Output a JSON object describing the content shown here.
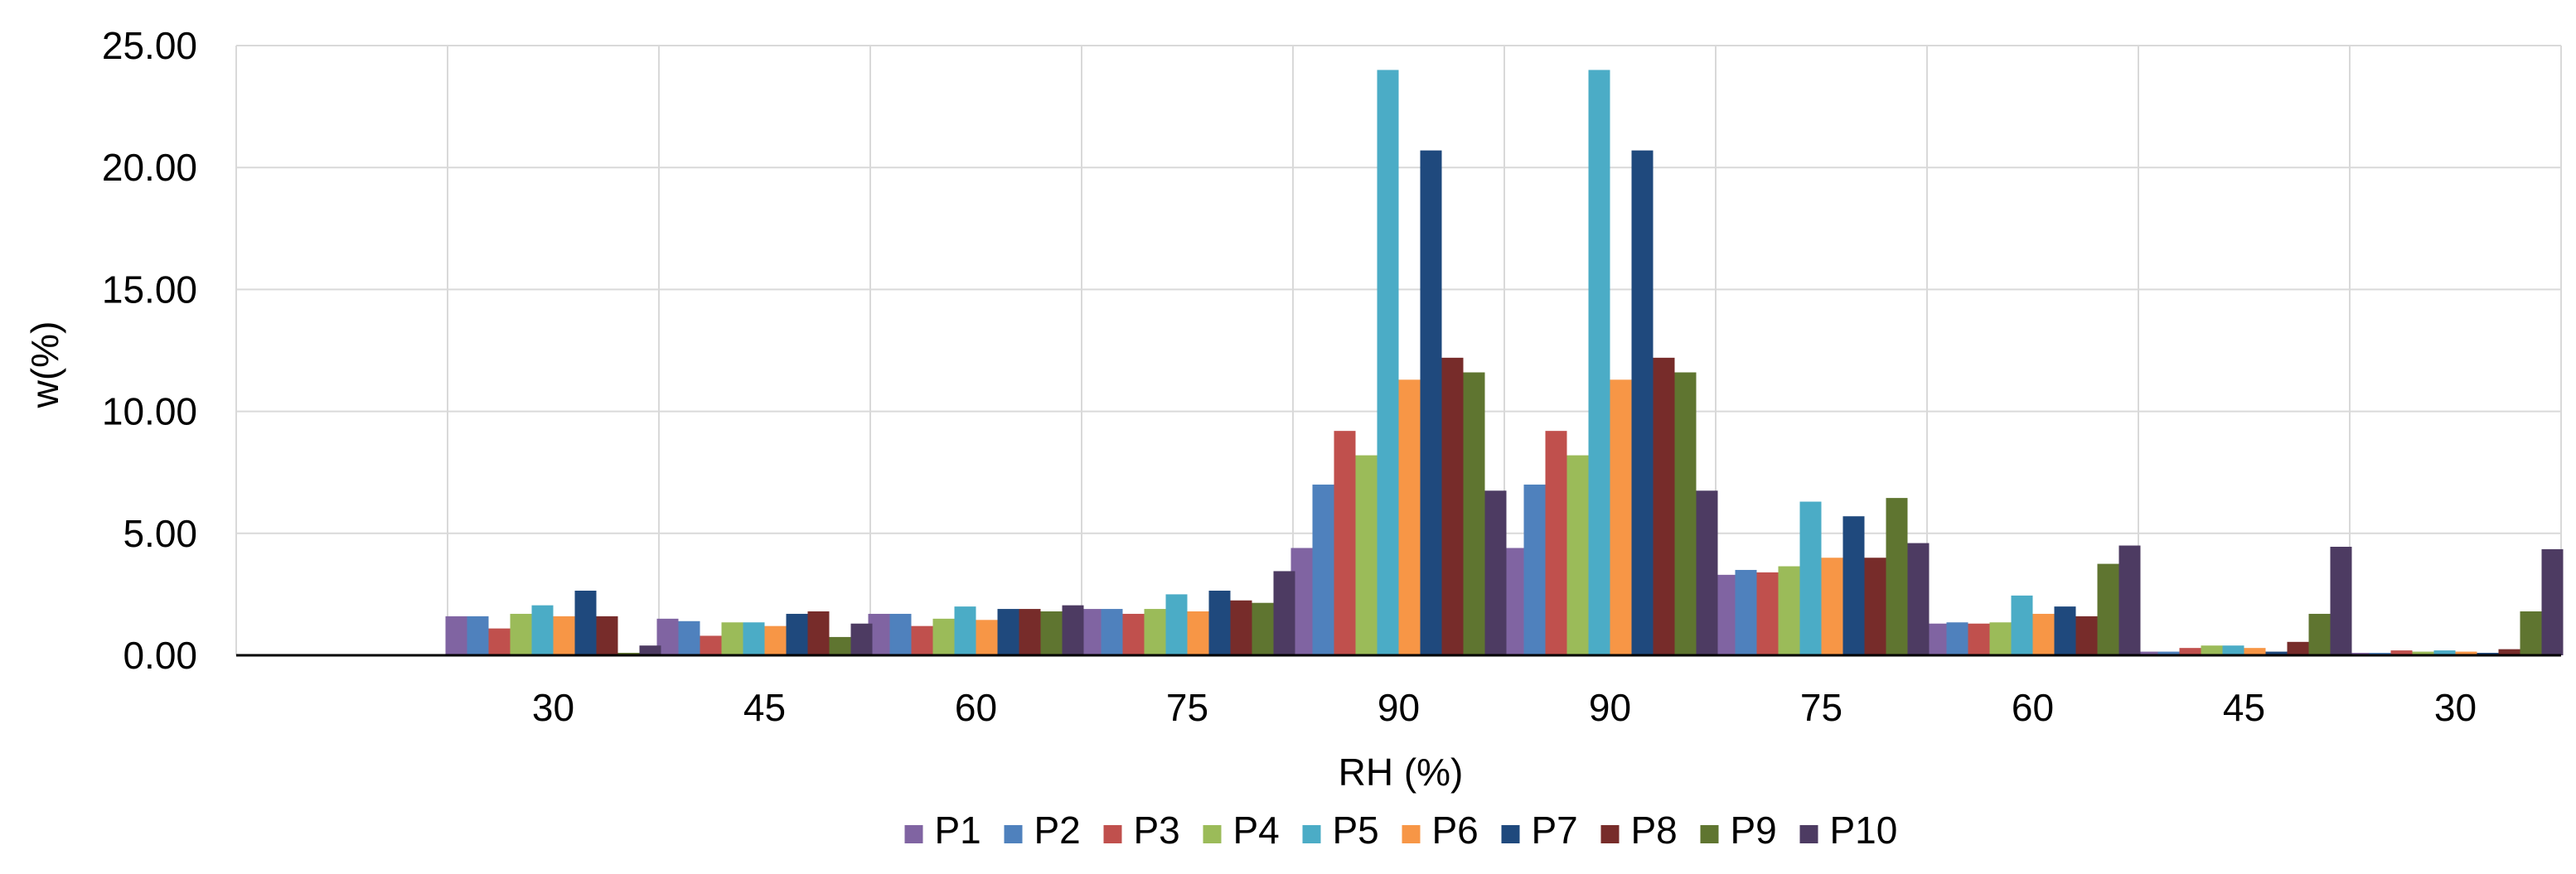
{
  "chart_data": {
    "type": "bar",
    "title": "",
    "xlabel": "RH (%)",
    "ylabel": "w(%)",
    "ylim": [
      0,
      25
    ],
    "yticks": [
      "0.00",
      "5.00",
      "10.00",
      "15.00",
      "20.00",
      "25.00"
    ],
    "ytick_values": [
      0,
      5,
      10,
      15,
      20,
      25
    ],
    "grid": true,
    "legend_position": "bottom",
    "categories": [
      "",
      "30",
      "45",
      "60",
      "75",
      "90",
      "90",
      "75",
      "60",
      "45",
      "30"
    ],
    "series": [
      {
        "name": "P1",
        "color": "#8064a2",
        "values": [
          0,
          1.6,
          1.5,
          1.7,
          1.9,
          4.4,
          4.4,
          3.3,
          1.3,
          0.15,
          0.1
        ]
      },
      {
        "name": "P2",
        "color": "#4f81bd",
        "values": [
          0,
          1.6,
          1.4,
          1.7,
          1.9,
          7.0,
          7.0,
          3.5,
          1.35,
          0.15,
          0.1
        ]
      },
      {
        "name": "P3",
        "color": "#c0504d",
        "values": [
          0,
          1.1,
          0.8,
          1.2,
          1.7,
          9.2,
          9.2,
          3.4,
          1.3,
          0.3,
          0.2
        ]
      },
      {
        "name": "P4",
        "color": "#9bbb59",
        "values": [
          0,
          1.7,
          1.35,
          1.5,
          1.9,
          8.2,
          8.2,
          3.65,
          1.35,
          0.4,
          0.15
        ]
      },
      {
        "name": "P5",
        "color": "#4bacc6",
        "values": [
          0,
          2.05,
          1.35,
          2.0,
          2.5,
          24.0,
          24.0,
          6.3,
          2.45,
          0.4,
          0.2
        ]
      },
      {
        "name": "P6",
        "color": "#f79646",
        "values": [
          0,
          1.6,
          1.2,
          1.45,
          1.8,
          11.3,
          11.3,
          4.0,
          1.7,
          0.3,
          0.15
        ]
      },
      {
        "name": "P7",
        "color": "#1f497d",
        "values": [
          0,
          2.65,
          1.7,
          1.9,
          2.65,
          20.7,
          20.7,
          5.7,
          2.0,
          0.15,
          0.1
        ]
      },
      {
        "name": "P8",
        "color": "#772c2a",
        "values": [
          0,
          1.6,
          1.8,
          1.9,
          2.25,
          12.2,
          12.2,
          4.0,
          1.6,
          0.55,
          0.25
        ]
      },
      {
        "name": "P9",
        "color": "#5f7530",
        "values": [
          0,
          0.1,
          0.75,
          1.8,
          2.15,
          11.6,
          11.6,
          6.45,
          3.75,
          1.7,
          1.8
        ]
      },
      {
        "name": "P10",
        "color": "#4d3b62",
        "values": [
          0,
          0.4,
          1.3,
          2.05,
          3.45,
          6.75,
          6.75,
          4.6,
          4.5,
          4.45,
          4.35
        ]
      }
    ]
  }
}
